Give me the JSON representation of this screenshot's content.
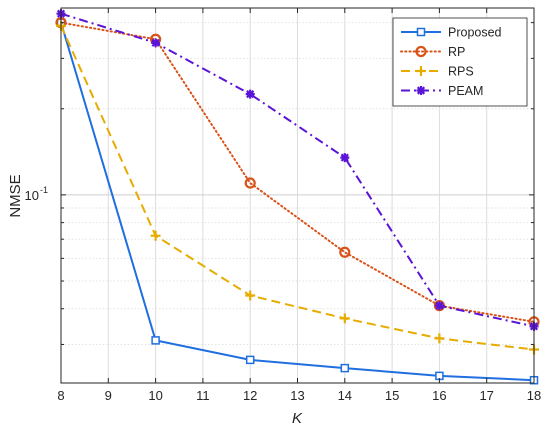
{
  "chart_data": {
    "type": "line",
    "xlabel": "K",
    "ylabel": "NMSE",
    "x": [
      8,
      10,
      12,
      14,
      16,
      18
    ],
    "xlim": [
      8,
      18
    ],
    "xticks": [
      "8",
      "9",
      "10",
      "11",
      "12",
      "13",
      "14",
      "15",
      "16",
      "17",
      "18"
    ],
    "ylim": [
      0.022,
      0.45
    ],
    "yscale": "log",
    "ytick_label": "10",
    "ytick_exp": "-1",
    "grid": true,
    "legend_position": "top-right",
    "series": [
      {
        "name": "Proposed",
        "color": "#1f6fe0",
        "style": "solid",
        "marker": "square",
        "values": [
          0.4,
          0.031,
          0.0265,
          0.0248,
          0.0233,
          0.0225
        ]
      },
      {
        "name": "RP",
        "color": "#d95319",
        "style": "dotted",
        "marker": "circle",
        "values": [
          0.4,
          0.35,
          0.11,
          0.063,
          0.041,
          0.036
        ]
      },
      {
        "name": "RPS",
        "color": "#e6ac00",
        "style": "dashed",
        "marker": "plus",
        "values": [
          0.39,
          0.072,
          0.0445,
          0.037,
          0.0315,
          0.0288
        ]
      },
      {
        "name": "PEAM",
        "color": "#5a14d8",
        "style": "dashdot",
        "marker": "star",
        "values": [
          0.43,
          0.34,
          0.225,
          0.135,
          0.041,
          0.0347
        ]
      }
    ]
  }
}
